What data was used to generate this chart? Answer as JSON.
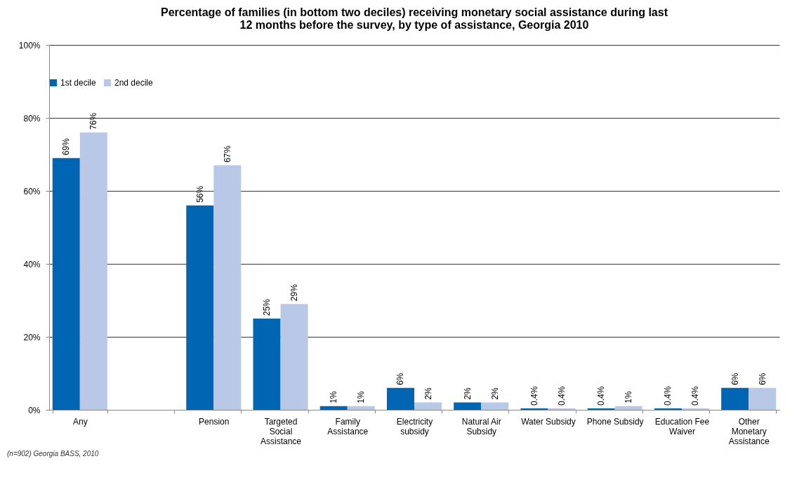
{
  "chart_data": {
    "type": "bar",
    "title": "Percentage of families (in bottom two deciles) receiving monetary social assistance during last 12 months before the survey, by type of assistance, Georgia 2010",
    "categories": [
      "Any",
      null,
      "Pension",
      "Targeted Social Assistance",
      "Family Assistance",
      "Electricity subsidy",
      "Natural Air Subsidy",
      "Water Subsidy",
      "Phone Subsidy",
      "Education Fee Waiver",
      "Other Monetary Assistance"
    ],
    "series": [
      {
        "name": "1st decile",
        "color": "#0066b3",
        "values": [
          69,
          null,
          56,
          25,
          1,
          6,
          2,
          0.4,
          0.4,
          0.4,
          6
        ],
        "value_labels": [
          "69%",
          null,
          "56%",
          "25%",
          "1%",
          "6%",
          "2%",
          "0.4%",
          "0.4%",
          "0.4%",
          "6%"
        ]
      },
      {
        "name": "2nd decile",
        "color": "#b9c8e6",
        "values": [
          76,
          null,
          67,
          29,
          1,
          2,
          2,
          0.4,
          1,
          0.4,
          6
        ],
        "value_labels": [
          "76%",
          null,
          "67%",
          "29%",
          "1%",
          "2%",
          "2%",
          "0.4%",
          "1%",
          "0.4%",
          "6%"
        ]
      }
    ],
    "ylim": [
      0,
      100
    ],
    "yticks": [
      {
        "value": 0,
        "label": "0%"
      },
      {
        "value": 20,
        "label": "20%"
      },
      {
        "value": 40,
        "label": "40%"
      },
      {
        "value": 60,
        "label": "60%"
      },
      {
        "value": 80,
        "label": "80%"
      },
      {
        "value": 100,
        "label": "100%"
      }
    ],
    "grid": "y",
    "legend": "top",
    "annotations": [
      "(n=902) Georgia BASS, 2010"
    ]
  }
}
